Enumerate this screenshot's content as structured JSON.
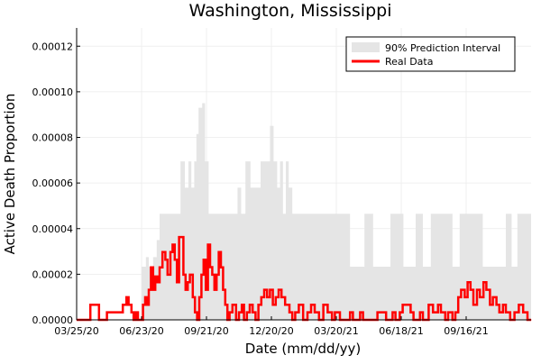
{
  "chart_data": {
    "type": "area",
    "title": "Washington, Mississippi",
    "xlabel": "Date (mm/dd/yy)",
    "ylabel": "Active Death Proportion",
    "x_range": [
      "03/25/20",
      "12/15/21"
    ],
    "ylim": [
      0,
      0.000128
    ],
    "x_ticks": [
      "03/25/20",
      "06/23/20",
      "09/21/20",
      "12/20/20",
      "03/20/21",
      "06/18/21",
      "09/16/21"
    ],
    "y_ticks": [
      "0.00000",
      "0.00002",
      "0.00004",
      "0.00006",
      "0.00008",
      "0.00010",
      "0.00012"
    ],
    "grid": true,
    "legend_position": "top-right",
    "series": [
      {
        "name": "90% Prediction Interval",
        "kind": "band",
        "color": "#e5e5e5",
        "x": [
          "06/23/20",
          "06/27/20",
          "06/29/20",
          "07/03/20",
          "07/09/20",
          "07/14/20",
          "07/18/20",
          "07/23/20",
          "08/01/20",
          "08/10/20",
          "08/16/20",
          "08/22/20",
          "08/27/20",
          "08/31/20",
          "09/04/20",
          "09/07/20",
          "09/10/20",
          "09/15/20",
          "09/19/20",
          "09/24/20",
          "09/28/20",
          "10/02/20",
          "10/09/20",
          "10/16/20",
          "10/23/20",
          "10/29/20",
          "11/03/20",
          "11/08/20",
          "11/14/20",
          "11/21/20",
          "11/28/20",
          "12/05/20",
          "12/12/20",
          "12/18/20",
          "12/23/20",
          "12/28/20",
          "01/01/21",
          "01/05/21",
          "01/09/21",
          "01/13/21",
          "01/18/21",
          "01/25/21",
          "02/02/21",
          "02/12/21",
          "02/25/21",
          "03/08/21",
          "03/18/21",
          "03/29/21",
          "04/08/21",
          "04/18/21",
          "04/28/21",
          "05/10/21",
          "05/22/21",
          "06/03/21",
          "06/13/21",
          "06/21/21",
          "06/29/21",
          "07/08/21",
          "07/18/21",
          "07/29/21",
          "08/08/21",
          "08/18/21",
          "08/28/21",
          "09/07/21",
          "09/15/21",
          "09/23/21",
          "10/01/21",
          "10/09/21",
          "10/17/21",
          "10/25/21",
          "11/02/21",
          "11/10/21",
          "11/18/21",
          "11/26/21",
          "12/04/21",
          "12/15/21"
        ],
        "lower": [
          0,
          0,
          0,
          0,
          0,
          0,
          0,
          0,
          0,
          0,
          0,
          0,
          0,
          0,
          0,
          0,
          0,
          0,
          0,
          0,
          0,
          0,
          0,
          0,
          0,
          0,
          0,
          0,
          0,
          0,
          0,
          0,
          0,
          0,
          0,
          0,
          0,
          0,
          0,
          0,
          0,
          0,
          0,
          0,
          0,
          0,
          0,
          0,
          0,
          0,
          0,
          0,
          0,
          0,
          0,
          0,
          0,
          0,
          0,
          0,
          0,
          0,
          0,
          0,
          0,
          0,
          0,
          0,
          0,
          0,
          0,
          0,
          0,
          0,
          0,
          0
        ],
        "upper": [
          2.33e-05,
          2.33e-05,
          2.75e-05,
          2.33e-05,
          2.75e-05,
          3.5e-05,
          4.65e-05,
          4.65e-05,
          4.65e-05,
          4.65e-05,
          6.95e-05,
          5.8e-05,
          6.95e-05,
          5.8e-05,
          6.95e-05,
          8.15e-05,
          9.3e-05,
          9.5e-05,
          6.95e-05,
          4.65e-05,
          4.65e-05,
          4.65e-05,
          4.65e-05,
          4.65e-05,
          4.65e-05,
          4.65e-05,
          5.8e-05,
          4.65e-05,
          6.95e-05,
          5.8e-05,
          5.8e-05,
          6.95e-05,
          6.95e-05,
          8.5e-05,
          6.95e-05,
          5.8e-05,
          6.95e-05,
          4.65e-05,
          6.95e-05,
          5.8e-05,
          4.65e-05,
          4.65e-05,
          4.65e-05,
          4.65e-05,
          4.65e-05,
          4.65e-05,
          4.65e-05,
          4.65e-05,
          2.33e-05,
          2.33e-05,
          4.65e-05,
          2.33e-05,
          2.33e-05,
          4.65e-05,
          4.65e-05,
          2.33e-05,
          2.33e-05,
          4.65e-05,
          2.33e-05,
          4.65e-05,
          4.65e-05,
          4.65e-05,
          2.33e-05,
          4.65e-05,
          4.65e-05,
          4.65e-05,
          4.65e-05,
          2.33e-05,
          2.33e-05,
          2.33e-05,
          2.33e-05,
          4.65e-05,
          2.33e-05,
          4.65e-05,
          4.65e-05,
          4.65e-05
        ]
      },
      {
        "name": "Real Data",
        "kind": "line",
        "color": "#ff0000",
        "x": [
          "03/25/20",
          "04/10/20",
          "04/13/20",
          "04/22/20",
          "04/25/20",
          "05/03/20",
          "05/06/20",
          "05/25/20",
          "05/28/20",
          "06/02/20",
          "06/05/20",
          "06/09/20",
          "06/12/20",
          "06/15/20",
          "06/18/20",
          "06/22/20",
          "06/25/20",
          "06/28/20",
          "06/30/20",
          "07/03/20",
          "07/06/20",
          "07/09/20",
          "07/12/20",
          "07/15/20",
          "07/18/20",
          "07/22/20",
          "07/26/20",
          "07/29/20",
          "08/02/20",
          "08/05/20",
          "08/08/20",
          "08/11/20",
          "08/14/20",
          "08/17/20",
          "08/20/20",
          "08/23/20",
          "08/26/20",
          "08/29/20",
          "09/02/20",
          "09/05/20",
          "09/08/20",
          "09/11/20",
          "09/14/20",
          "09/17/20",
          "09/20/20",
          "09/23/20",
          "09/26/20",
          "09/29/20",
          "10/02/20",
          "10/05/20",
          "10/08/20",
          "10/11/20",
          "10/14/20",
          "10/17/20",
          "10/20/20",
          "10/23/20",
          "10/27/20",
          "11/01/20",
          "11/05/20",
          "11/09/20",
          "11/12/20",
          "11/16/20",
          "11/20/20",
          "11/24/20",
          "11/28/20",
          "12/02/20",
          "12/06/20",
          "12/10/20",
          "12/14/20",
          "12/18/20",
          "12/22/20",
          "12/26/20",
          "12/30/20",
          "01/03/21",
          "01/08/21",
          "01/14/21",
          "01/18/21",
          "01/22/21",
          "01/27/21",
          "02/02/21",
          "02/08/21",
          "02/13/21",
          "02/18/21",
          "02/24/21",
          "03/02/21",
          "03/08/21",
          "03/14/21",
          "03/18/21",
          "03/25/21",
          "04/05/21",
          "04/08/21",
          "04/12/21",
          "04/22/21",
          "04/26/21",
          "05/12/21",
          "05/16/21",
          "05/24/21",
          "05/28/21",
          "06/06/21",
          "06/10/21",
          "06/16/21",
          "06/20/21",
          "07/01/21",
          "07/05/21",
          "07/14/21",
          "07/18/21",
          "07/26/21",
          "08/01/21",
          "08/08/21",
          "08/12/21",
          "08/18/21",
          "08/22/21",
          "08/28/21",
          "09/01/21",
          "09/05/21",
          "09/09/21",
          "09/14/21",
          "09/18/21",
          "09/22/21",
          "09/26/21",
          "10/01/21",
          "10/05/21",
          "10/10/21",
          "10/14/21",
          "10/19/21",
          "10/23/21",
          "10/28/21",
          "11/01/21",
          "11/06/21",
          "11/10/21",
          "11/16/21",
          "11/22/21",
          "11/28/21",
          "12/04/21",
          "12/10/21",
          "12/15/21"
        ],
        "y": [
          0,
          0,
          6.6e-06,
          6.6e-06,
          0,
          0,
          3.3e-06,
          3.3e-06,
          6.6e-06,
          9.9e-06,
          6.6e-06,
          3.3e-06,
          0,
          3.3e-06,
          0,
          0,
          6.6e-06,
          9.9e-06,
          6.6e-06,
          1.32e-05,
          2.3e-05,
          1.32e-05,
          1.9e-05,
          1.65e-05,
          2.3e-05,
          2.97e-05,
          2.64e-05,
          1.98e-05,
          2.97e-05,
          3.3e-05,
          2.64e-05,
          1.65e-05,
          3.63e-05,
          3.63e-05,
          1.98e-05,
          1.32e-05,
          1.65e-05,
          1.98e-05,
          9.9e-06,
          3.3e-06,
          0,
          9.9e-06,
          1.98e-05,
          2.64e-05,
          1.32e-05,
          3.3e-05,
          2.31e-05,
          1.98e-05,
          1.32e-05,
          1.98e-05,
          2.97e-05,
          2.3e-05,
          1.32e-05,
          6.6e-06,
          0,
          3.3e-06,
          6.6e-06,
          0,
          3.3e-06,
          6.6e-06,
          0,
          3.3e-06,
          6.6e-06,
          3.3e-06,
          0,
          6.6e-06,
          9.9e-06,
          1.32e-05,
          9.9e-06,
          1.32e-05,
          6.6e-06,
          9.9e-06,
          1.32e-05,
          9.9e-06,
          6.6e-06,
          3.3e-06,
          0,
          3.3e-06,
          6.6e-06,
          0,
          3.3e-06,
          6.6e-06,
          3.3e-06,
          0,
          6.6e-06,
          3.3e-06,
          0,
          3.3e-06,
          0,
          0,
          3.3e-06,
          0,
          3.3e-06,
          0,
          0,
          3.3e-06,
          3.3e-06,
          0,
          3.3e-06,
          0,
          3.3e-06,
          6.6e-06,
          3.3e-06,
          0,
          3.3e-06,
          0,
          6.6e-06,
          3.3e-06,
          6.6e-06,
          3.3e-06,
          0,
          3.3e-06,
          0,
          3.3e-06,
          9.9e-06,
          1.32e-05,
          9.9e-06,
          1.65e-05,
          1.32e-05,
          6.6e-06,
          1.32e-05,
          9.9e-06,
          1.65e-05,
          1.32e-05,
          6.6e-06,
          9.9e-06,
          6.6e-06,
          3.3e-06,
          6.6e-06,
          3.3e-06,
          0,
          3.3e-06,
          6.6e-06,
          3.3e-06,
          0,
          0
        ]
      }
    ]
  }
}
